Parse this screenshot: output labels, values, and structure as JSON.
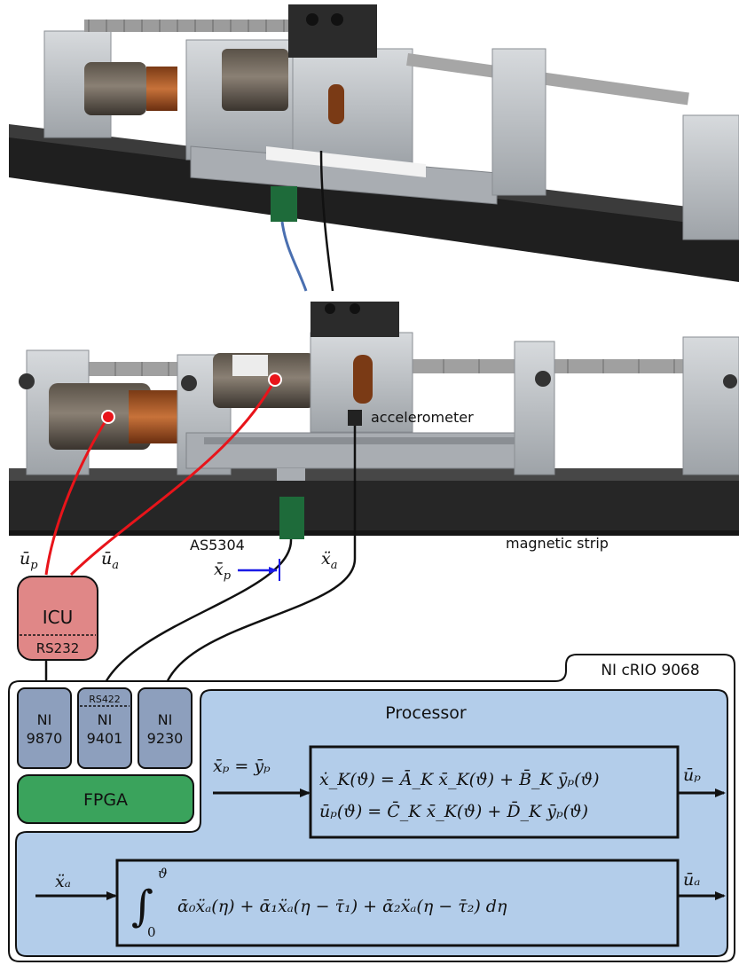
{
  "labels": {
    "accelerometer": "accelerometer",
    "sensor": "AS5304",
    "magnetic_strip": "magnetic strip",
    "u_p": "ū",
    "u_p_sub": "p",
    "u_a": "ū",
    "u_a_sub": "a",
    "x_p": "x̄",
    "x_p_sub": "p",
    "x_a_dd": "ẍ",
    "x_a_dd_sub": "a"
  },
  "icu": {
    "title": "ICU",
    "port": "RS232"
  },
  "crio": {
    "title": "NI cRIO 9068",
    "modules": [
      {
        "top": "",
        "line1": "NI",
        "line2": "9870"
      },
      {
        "top": "RS422",
        "line1": "NI",
        "line2": "9401"
      },
      {
        "top": "",
        "line1": "NI",
        "line2": "9230"
      }
    ],
    "fpga": "FPGA",
    "processor": "Processor"
  },
  "controller": {
    "input": "x̄ₚ = ȳₚ",
    "eq1": "ẋ_K(ϑ) = Ā_K x̄_K(ϑ) + B̄_K ȳₚ(ϑ)",
    "eq2": "ūₚ(ϑ) = C̄_K x̄_K(ϑ) + D̄_K ȳₚ(ϑ)",
    "output": "ūₚ"
  },
  "integrator": {
    "input": "ẍₐ",
    "upper": "ϑ",
    "lower": "0",
    "body": "ᾱ₀ẍₐ(η) + ᾱ₁ẍₐ(η − τ̄₁) + ᾱ₂ẍₐ(η − τ̄₂) dη",
    "output": "ūₐ"
  },
  "colors": {
    "icu": "#e08787",
    "module": "#8d9fbd",
    "fpga": "#3aa35c",
    "processor": "#b3cdea",
    "wire_red": "#e8141a",
    "arrow_blue": "#1a1ae6",
    "rail": "#2a2a2a",
    "aluminium": "#b9bdc2"
  }
}
